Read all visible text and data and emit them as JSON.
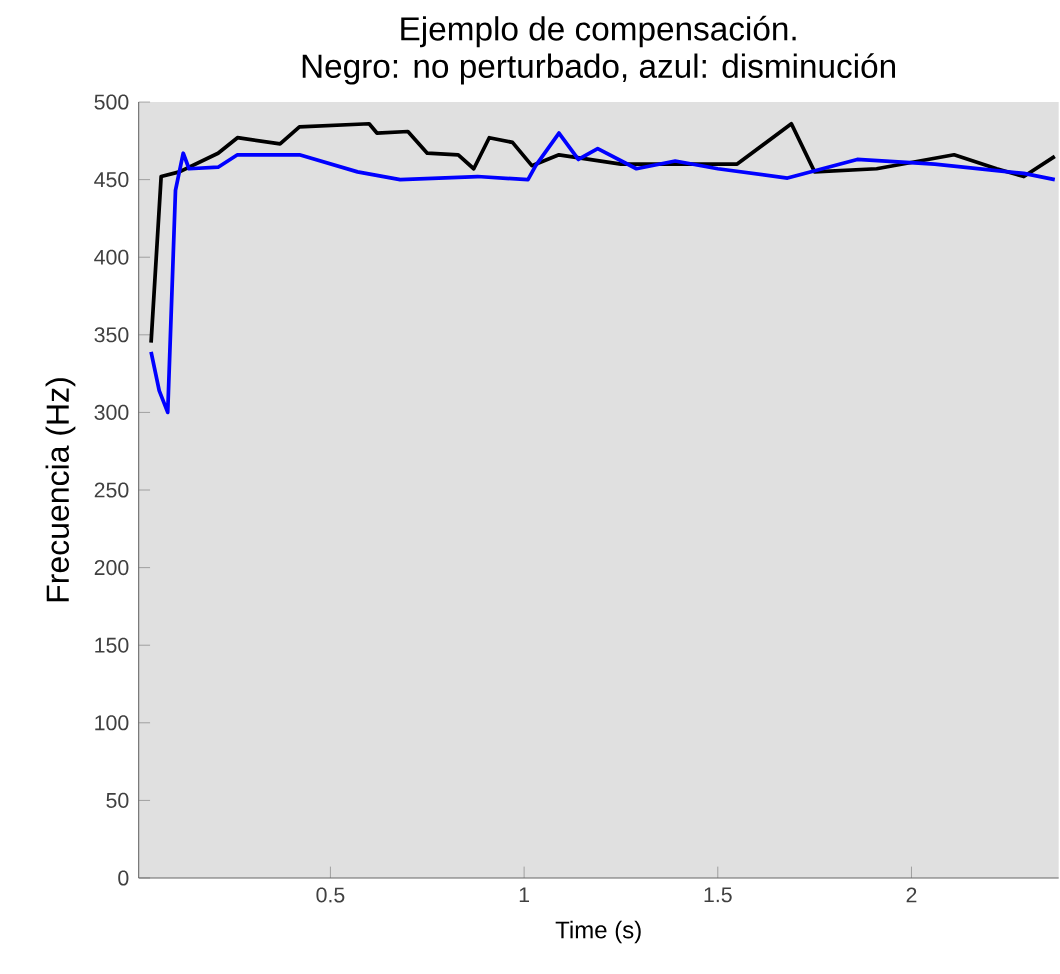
{
  "chart_data": {
    "type": "line",
    "title": "Ejemplo de compensación.\nNegro: no perturbado, azul: disminución",
    "xlabel": "Time (s)",
    "ylabel": "Frecuencia (Hz)",
    "xlim": [
      0.005,
      2.38
    ],
    "ylim": [
      0,
      500
    ],
    "xticks": [
      0.5,
      1,
      1.5,
      2
    ],
    "yticks": [
      0,
      50,
      100,
      150,
      200,
      250,
      300,
      350,
      400,
      450,
      500
    ],
    "line_style": "solid",
    "series": [
      {
        "color": "#000000",
        "x": [
          0.037,
          0.063,
          0.11,
          0.21,
          0.26,
          0.37,
          0.42,
          0.6,
          0.62,
          0.7,
          0.75,
          0.83,
          0.87,
          0.91,
          0.97,
          1.02,
          1.09,
          1.25,
          1.34,
          1.55,
          1.69,
          1.75,
          1.91,
          2.11,
          2.22,
          2.29,
          2.37
        ],
        "values": [
          345,
          452,
          455,
          467,
          477,
          473,
          484,
          486,
          480,
          481,
          467,
          466,
          457,
          477,
          474,
          459,
          466,
          460,
          460,
          460,
          486,
          455,
          457,
          466,
          457,
          452,
          465
        ]
      },
      {
        "color": "#0000ff",
        "x": [
          0.037,
          0.058,
          0.08,
          0.1,
          0.12,
          0.135,
          0.21,
          0.26,
          0.42,
          0.57,
          0.68,
          0.88,
          1.01,
          1.03,
          1.09,
          1.14,
          1.19,
          1.29,
          1.39,
          1.5,
          1.68,
          1.86,
          2.06,
          2.29,
          2.37
        ],
        "values": [
          339,
          314,
          300,
          443,
          467,
          457,
          458,
          466,
          466,
          455,
          450,
          452,
          450,
          459,
          480,
          463,
          470,
          457,
          462,
          457,
          451,
          463,
          460,
          454,
          450
        ]
      }
    ]
  }
}
